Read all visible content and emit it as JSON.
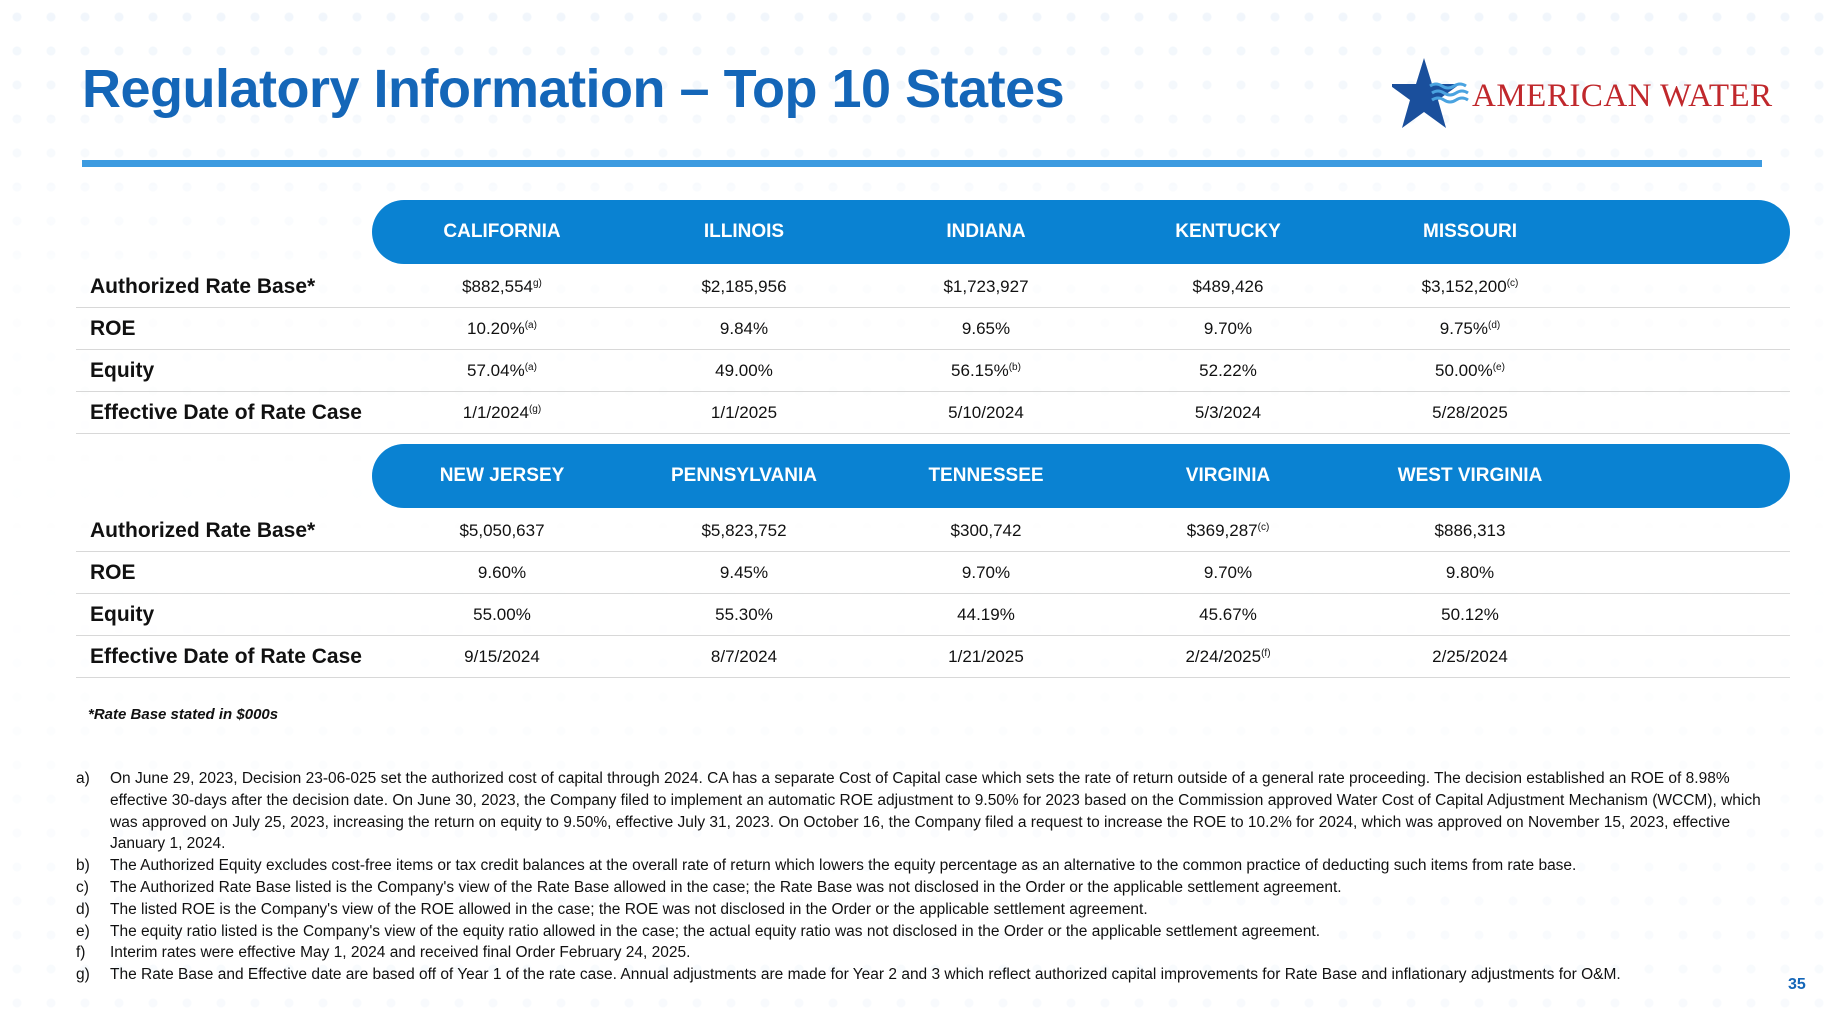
{
  "title": "Regulatory Information – Top 10 States",
  "logo": {
    "text": "AMERICAN WATER",
    "icon": "star-water-icon",
    "color": "#c0282c",
    "icon_color": "#1a4f9c"
  },
  "accent_color": "#0a82d2",
  "row_labels": [
    "Authorized Rate Base*",
    "ROE",
    "Equity",
    "Effective Date of Rate Case"
  ],
  "sections": [
    {
      "states": [
        "CALIFORNIA",
        "ILLINOIS",
        "INDIANA",
        "KENTUCKY",
        "MISSOURI"
      ],
      "rows": [
        [
          {
            "v": "$882,554",
            "n": "g)"
          },
          {
            "v": "$2,185,956",
            "n": ""
          },
          {
            "v": "$1,723,927",
            "n": ""
          },
          {
            "v": "$489,426",
            "n": ""
          },
          {
            "v": "$3,152,200",
            "n": "(c)"
          }
        ],
        [
          {
            "v": "10.20%",
            "n": "(a)"
          },
          {
            "v": "9.84%",
            "n": ""
          },
          {
            "v": "9.65%",
            "n": ""
          },
          {
            "v": "9.70%",
            "n": ""
          },
          {
            "v": "9.75%",
            "n": "(d)"
          }
        ],
        [
          {
            "v": "57.04%",
            "n": "(a)"
          },
          {
            "v": "49.00%",
            "n": ""
          },
          {
            "v": "56.15%",
            "n": "(b)"
          },
          {
            "v": "52.22%",
            "n": ""
          },
          {
            "v": "50.00%",
            "n": "(e)"
          }
        ],
        [
          {
            "v": "1/1/2024",
            "n": "(g)"
          },
          {
            "v": "1/1/2025",
            "n": ""
          },
          {
            "v": "5/10/2024",
            "n": ""
          },
          {
            "v": "5/3/2024",
            "n": ""
          },
          {
            "v": "5/28/2025",
            "n": ""
          }
        ]
      ]
    },
    {
      "states": [
        "NEW JERSEY",
        "PENNSYLVANIA",
        "TENNESSEE",
        "VIRGINIA",
        "WEST VIRGINIA"
      ],
      "rows": [
        [
          {
            "v": "$5,050,637",
            "n": ""
          },
          {
            "v": "$5,823,752",
            "n": ""
          },
          {
            "v": "$300,742",
            "n": ""
          },
          {
            "v": "$369,287",
            "n": "(c)"
          },
          {
            "v": "$886,313",
            "n": ""
          }
        ],
        [
          {
            "v": "9.60%",
            "n": ""
          },
          {
            "v": "9.45%",
            "n": ""
          },
          {
            "v": "9.70%",
            "n": ""
          },
          {
            "v": "9.70%",
            "n": ""
          },
          {
            "v": "9.80%",
            "n": ""
          }
        ],
        [
          {
            "v": "55.00%",
            "n": ""
          },
          {
            "v": "55.30%",
            "n": ""
          },
          {
            "v": "44.19%",
            "n": ""
          },
          {
            "v": "45.67%",
            "n": ""
          },
          {
            "v": "50.12%",
            "n": ""
          }
        ],
        [
          {
            "v": "9/15/2024",
            "n": ""
          },
          {
            "v": "8/7/2024",
            "n": ""
          },
          {
            "v": "1/21/2025",
            "n": ""
          },
          {
            "v": "2/24/2025",
            "n": "(f)"
          },
          {
            "v": "2/25/2024",
            "n": ""
          }
        ]
      ]
    }
  ],
  "rate_base_note": "*Rate Base stated in $000s",
  "footnotes": [
    {
      "letter": "a)",
      "text": "On June 29, 2023, Decision 23-06-025 set the authorized cost of capital through 2024. CA has a separate Cost of Capital case which sets the rate of return outside of a general rate proceeding. The decision established an ROE of 8.98% effective 30-days after the decision date. On June 30, 2023, the Company filed to implement an automatic ROE adjustment to 9.50% for 2023 based on the Commission approved Water Cost of Capital Adjustment Mechanism (WCCM), which was approved on July 25, 2023, increasing the return on equity to 9.50%, effective July 31, 2023. On October 16, the Company filed a request to increase the ROE to 10.2% for 2024, which was approved on November 15, 2023, effective January 1, 2024."
    },
    {
      "letter": "b)",
      "text": "The Authorized Equity excludes cost-free items or tax credit balances at the overall rate of return which lowers the equity percentage as an alternative to the common practice of deducting such items from rate base."
    },
    {
      "letter": "c)",
      "text": "The Authorized Rate Base listed is the Company's view of the Rate Base allowed in the case; the Rate Base was not disclosed in the Order or the applicable settlement agreement."
    },
    {
      "letter": "d)",
      "text": "The listed ROE is the Company's view of the ROE allowed in the case; the ROE was not disclosed in the Order or the applicable settlement agreement."
    },
    {
      "letter": "e)",
      "text": "The equity ratio listed is the Company's view of the equity ratio allowed in the case; the actual equity ratio was not disclosed in the Order or the applicable settlement agreement."
    },
    {
      "letter": "f)",
      "text": "Interim rates were effective May 1, 2024 and received final Order February 24, 2025."
    },
    {
      "letter": "g)",
      "text": "The Rate Base and Effective date are based off of Year 1 of the rate case. Annual adjustments are made for Year 2 and 3 which reflect authorized capital improvements for Rate Base and inflationary adjustments for O&M."
    }
  ],
  "page_number": "35"
}
